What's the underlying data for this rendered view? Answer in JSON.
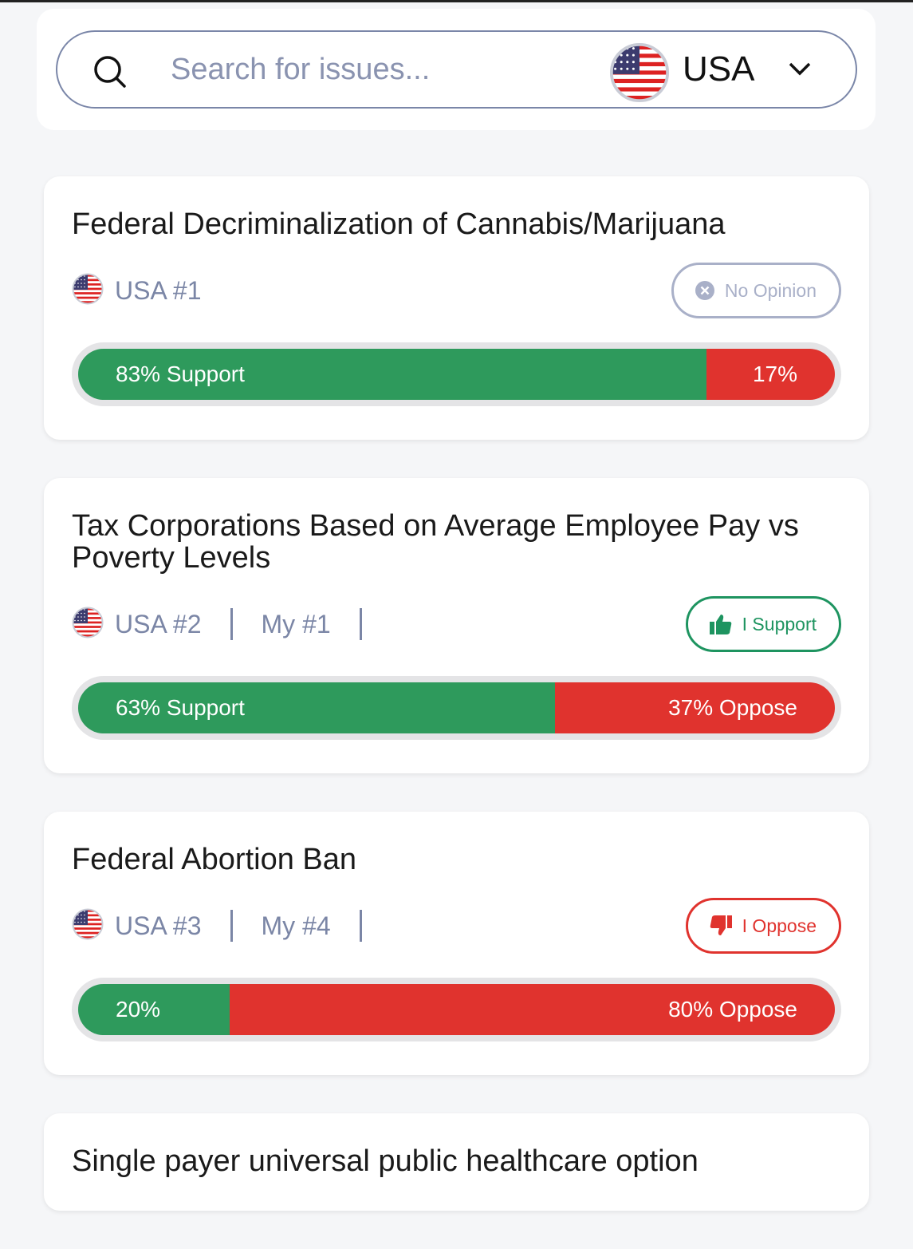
{
  "search": {
    "placeholder": "Search for issues...",
    "country": "USA"
  },
  "issues": [
    {
      "title": "Federal Decriminalization of Cannabis/Marijuana",
      "rank": "USA #1",
      "stance": "No Opinion",
      "stance_icon": "x",
      "stance_color": "#a9b0c8",
      "support": 83,
      "oppose": 17,
      "support_label": "83% Support",
      "oppose_label": "17%"
    },
    {
      "title": "Tax Corporations Based on Average Employee Pay vs Poverty Levels",
      "rank": "USA #2",
      "my_rank": "My #1",
      "stance": "I Support",
      "stance_icon": "thumbs-up",
      "stance_color": "#1e9460",
      "support": 63,
      "oppose": 37,
      "support_label": "63% Support",
      "oppose_label": "37% Oppose"
    },
    {
      "title": "Federal Abortion Ban",
      "rank": "USA #3",
      "my_rank": "My #4",
      "stance": "I Oppose",
      "stance_icon": "thumbs-down",
      "stance_color": "#e0332e",
      "support": 20,
      "oppose": 80,
      "support_label": "20%",
      "oppose_label": "80% Oppose"
    },
    {
      "title": "Single payer universal public healthcare option"
    }
  ]
}
